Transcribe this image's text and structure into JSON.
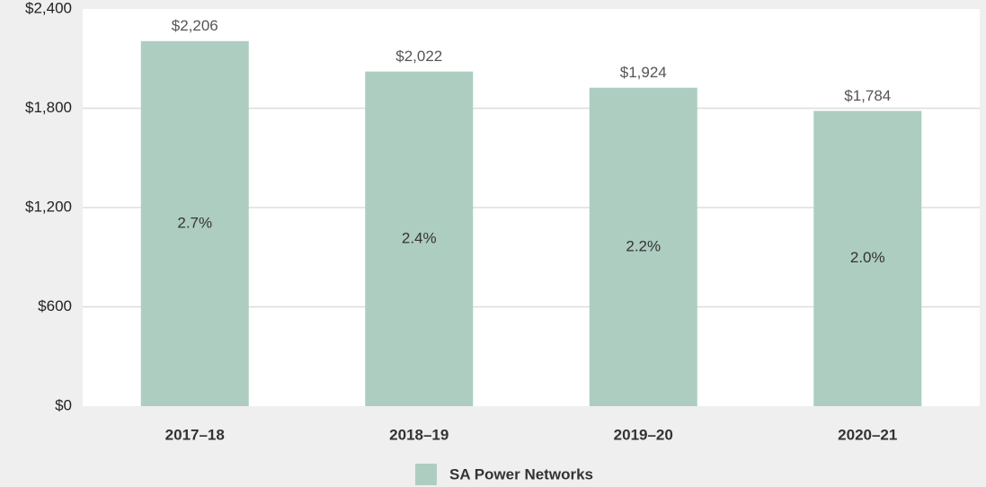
{
  "chart_data": {
    "type": "bar",
    "categories": [
      "2017–18",
      "2018–19",
      "2019–20",
      "2020–21"
    ],
    "series": [
      {
        "name": "SA Power Networks",
        "color": "#adcdc1",
        "values": [
          2206,
          2022,
          1924,
          1784
        ],
        "value_labels": [
          "$2,206",
          "$2,022",
          "$1,924",
          "$1,784"
        ],
        "inner_labels": [
          "2.7%",
          "2.4%",
          "2.2%",
          "2.0%"
        ]
      }
    ],
    "ylim": [
      0,
      2400
    ],
    "yticks": [
      {
        "value": 0,
        "label": "$0"
      },
      {
        "value": 600,
        "label": "$600"
      },
      {
        "value": 1200,
        "label": "$1,200"
      },
      {
        "value": 1800,
        "label": "$1,800"
      },
      {
        "value": 2400,
        "label": "$2,400"
      }
    ],
    "grid": true,
    "legend": "bottom"
  }
}
